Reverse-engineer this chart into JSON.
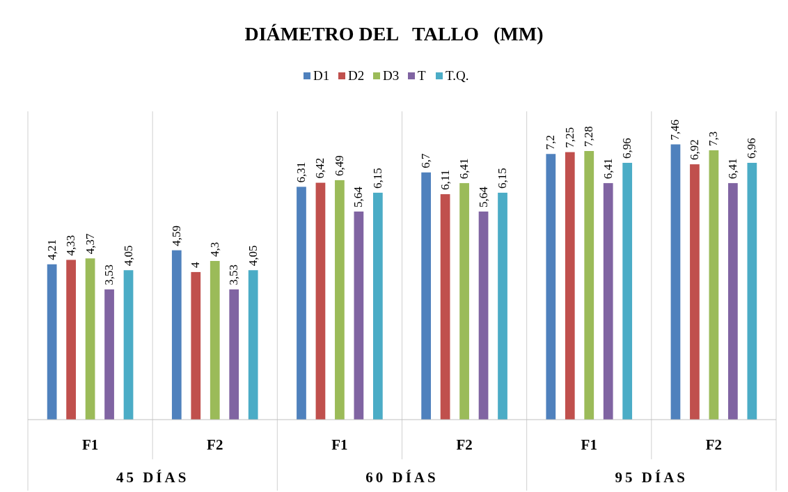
{
  "chart_data": {
    "type": "bar",
    "title": "DIÁMETRO DEL   TALLO   (MM)",
    "categories": [
      "F1",
      "F2",
      "F1",
      "F2",
      "F1",
      "F2"
    ],
    "series": [
      {
        "name": "D1",
        "color": "#4f81bd",
        "values": [
          4.21,
          4.59,
          6.31,
          6.7,
          7.2,
          7.46
        ],
        "value_labels": [
          "4,21",
          "4,59",
          "6,31",
          "6,7",
          "7,2",
          "7,46"
        ]
      },
      {
        "name": "D2",
        "color": "#c0504d",
        "values": [
          4.33,
          4,
          6.42,
          6.11,
          7.25,
          6.92
        ],
        "value_labels": [
          "4,33",
          "4",
          "6,42",
          "6,11",
          "7,25",
          "6,92"
        ]
      },
      {
        "name": "D3",
        "color": "#9bbb59",
        "values": [
          4.37,
          4.3,
          6.49,
          6.41,
          7.28,
          7.3
        ],
        "value_labels": [
          "4,37",
          "4,3",
          "6,49",
          "6,41",
          "7,28",
          "7,3"
        ]
      },
      {
        "name": "T",
        "color": "#8064a2",
        "values": [
          3.53,
          3.53,
          5.64,
          5.64,
          6.41,
          6.41
        ],
        "value_labels": [
          "3,53",
          "3,53",
          "5,64",
          "5,64",
          "6,41",
          "6,41"
        ]
      },
      {
        "name": "T.Q.",
        "color": "#4bacc6",
        "values": [
          4.05,
          4.05,
          6.15,
          6.15,
          6.96,
          6.96
        ],
        "value_labels": [
          "4,05",
          "4,05",
          "6,15",
          "6,15",
          "6,96",
          "6,96"
        ]
      }
    ],
    "annotations": [
      "45 DÍAS",
      "60 DÍAS",
      "95 DÍAS"
    ],
    "legend": "top",
    "grid": "x"
  }
}
